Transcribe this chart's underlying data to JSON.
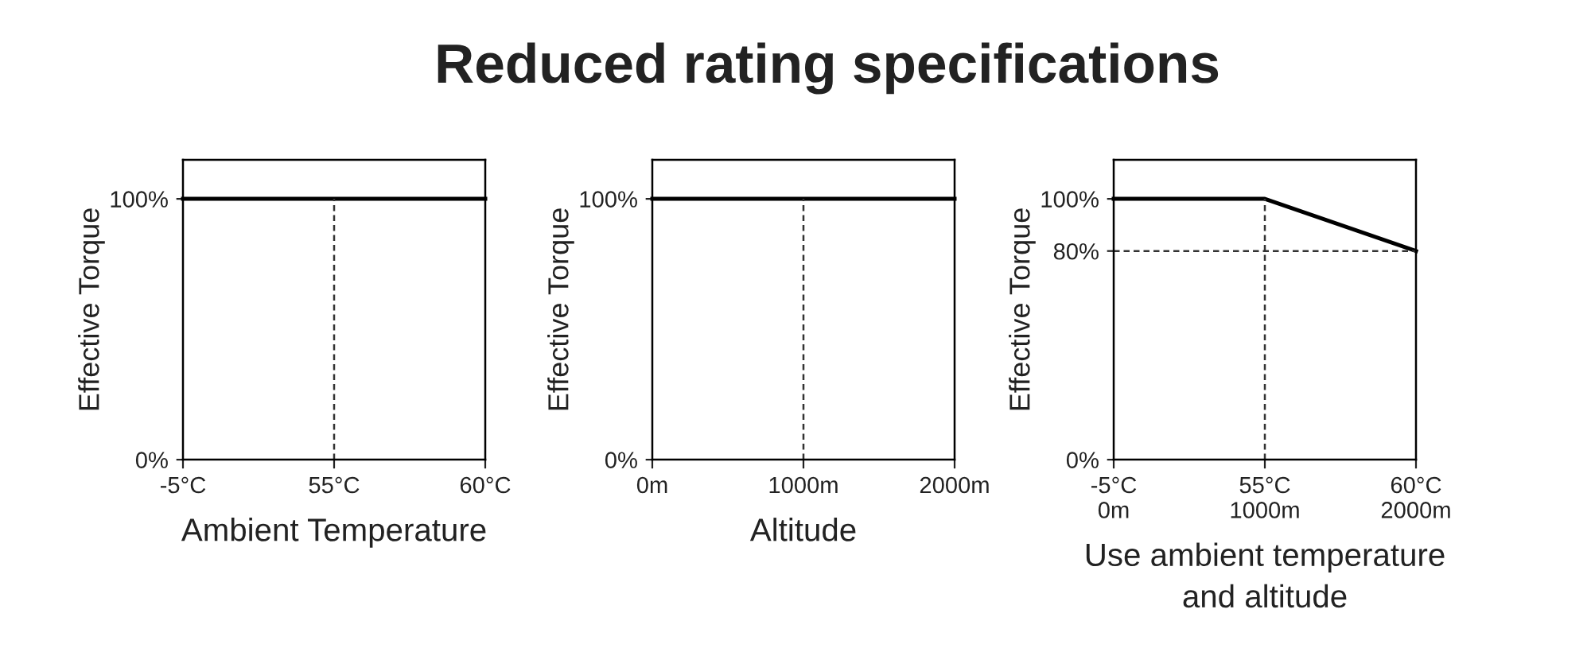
{
  "chart_data": [
    {
      "type": "line",
      "xlabel": "Ambient Temperature",
      "ylabel": "Effective Torque",
      "categories": [
        "-5°C",
        "55°C",
        "60°C"
      ],
      "series": [
        {
          "color": "#000000",
          "values": [
            100,
            100,
            100
          ]
        }
      ],
      "ylim": [
        0,
        115
      ],
      "yticks": [
        {
          "value": 0,
          "label": "0%"
        },
        {
          "value": 100,
          "label": "100%"
        }
      ],
      "ref_lines": [
        {
          "axis": "x",
          "value": "55°C",
          "line_style": "dashed",
          "color": "#333333"
        }
      ],
      "grid": false,
      "legend": false
    },
    {
      "type": "line",
      "title": "Reduced rating specifications",
      "xlabel": "Altitude",
      "ylabel": "Effective Torque",
      "categories": [
        "0m",
        "1000m",
        "2000m"
      ],
      "series": [
        {
          "color": "#000000",
          "values": [
            100,
            100,
            100
          ]
        }
      ],
      "ylim": [
        0,
        115
      ],
      "yticks": [
        {
          "value": 0,
          "label": "0%"
        },
        {
          "value": 100,
          "label": "100%"
        }
      ],
      "ref_lines": [
        {
          "axis": "x",
          "value": "1000m",
          "line_style": "dashed",
          "color": "#333333"
        }
      ],
      "grid": false,
      "legend": false
    },
    {
      "type": "line",
      "xlabel": "Use ambient temperature\nand altitude",
      "ylabel": "Effective Torque",
      "categories": [
        "-5°C\n0m",
        "55°C\n1000m",
        "60°C\n2000m"
      ],
      "series": [
        {
          "color": "#000000",
          "values": [
            100,
            100,
            80
          ]
        }
      ],
      "ylim": [
        0,
        115
      ],
      "yticks": [
        {
          "value": 0,
          "label": "0%"
        },
        {
          "value": 80,
          "label": "80%"
        },
        {
          "value": 100,
          "label": "100%"
        }
      ],
      "ref_lines": [
        {
          "axis": "x",
          "value": "55°C\n1000m",
          "line_style": "dashed",
          "color": "#333333"
        },
        {
          "axis": "y",
          "value": 80,
          "line_style": "dashed",
          "color": "#333333"
        }
      ],
      "grid": false,
      "legend": false
    }
  ]
}
